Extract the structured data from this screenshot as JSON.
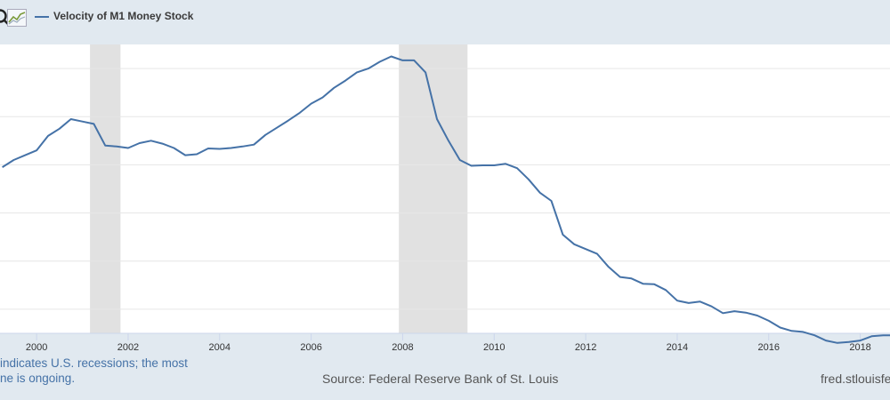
{
  "header": {
    "zoom_icon": "magnifier-icon",
    "chart_icon": "line-chart-icon"
  },
  "chart_data": {
    "type": "line",
    "title": "",
    "xlabel": "",
    "ylabel": "",
    "xlim": [
      1999.2,
      2018.65
    ],
    "ylim": [
      4.5,
      10.5
    ],
    "grid": true,
    "legend": "top-left",
    "x_tick_labels": [
      "2000",
      "2002",
      "2004",
      "2006",
      "2008",
      "2010",
      "2012",
      "2014",
      "2016",
      "2018"
    ],
    "recessions": [
      {
        "start": "2001-03",
        "end": "2001-11"
      },
      {
        "start": "2007-12",
        "end": "2009-06"
      }
    ],
    "series": [
      {
        "name": "Velocity of M1 Money Stock",
        "color": "#4572a7",
        "x": [
          1999.25,
          1999.5,
          1999.75,
          2000.0,
          2000.25,
          2000.5,
          2000.75,
          2001.0,
          2001.25,
          2001.5,
          2001.75,
          2002.0,
          2002.25,
          2002.5,
          2002.75,
          2003.0,
          2003.25,
          2003.5,
          2003.75,
          2004.0,
          2004.25,
          2004.5,
          2004.75,
          2005.0,
          2005.25,
          2005.5,
          2005.75,
          2006.0,
          2006.25,
          2006.5,
          2006.75,
          2007.0,
          2007.25,
          2007.5,
          2007.75,
          2008.0,
          2008.25,
          2008.5,
          2008.75,
          2009.0,
          2009.25,
          2009.5,
          2009.75,
          2010.0,
          2010.25,
          2010.5,
          2010.75,
          2011.0,
          2011.25,
          2011.5,
          2011.75,
          2012.0,
          2012.25,
          2012.5,
          2012.75,
          2013.0,
          2013.25,
          2013.5,
          2013.75,
          2014.0,
          2014.25,
          2014.5,
          2014.75,
          2015.0,
          2015.25,
          2015.5,
          2015.75,
          2016.0,
          2016.25,
          2016.5,
          2016.75,
          2017.0,
          2017.25,
          2017.5,
          2017.75,
          2018.0,
          2018.25,
          2018.5,
          2018.65
        ],
        "values": [
          7.95,
          8.1,
          8.2,
          8.3,
          8.6,
          8.75,
          8.95,
          8.9,
          8.85,
          8.4,
          8.38,
          8.35,
          8.45,
          8.5,
          8.44,
          8.35,
          8.2,
          8.22,
          8.34,
          8.33,
          8.35,
          8.38,
          8.42,
          8.62,
          8.77,
          8.92,
          9.08,
          9.27,
          9.4,
          9.6,
          9.75,
          9.92,
          10.0,
          10.14,
          10.25,
          10.17,
          10.17,
          9.92,
          8.95,
          8.5,
          8.1,
          7.98,
          7.99,
          7.99,
          8.02,
          7.93,
          7.7,
          7.42,
          7.25,
          6.55,
          6.35,
          6.25,
          6.15,
          5.88,
          5.67,
          5.64,
          5.53,
          5.52,
          5.4,
          5.18,
          5.13,
          5.16,
          5.06,
          4.92,
          4.96,
          4.93,
          4.87,
          4.76,
          4.62,
          4.55,
          4.53,
          4.46,
          4.35,
          4.3,
          4.32,
          4.35,
          4.44,
          4.46,
          4.46
        ]
      }
    ]
  },
  "footer": {
    "note_line1": "indicates U.S. recessions; the most",
    "note_line2": "ne is ongoing.",
    "source": "Source: Federal Reserve Bank of St. Louis",
    "site": "fred.stlouisfe"
  }
}
